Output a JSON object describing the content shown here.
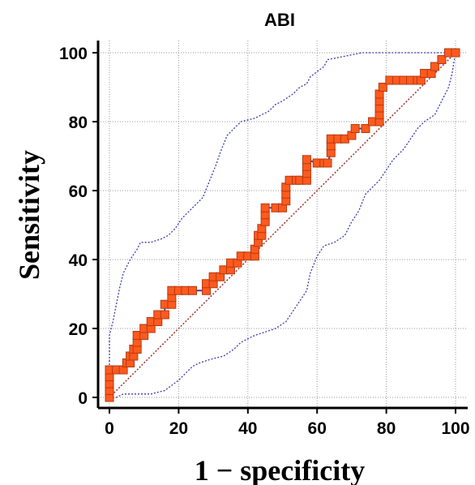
{
  "chart_data": {
    "type": "line",
    "title": "ABI",
    "xlabel": "1 − specificity",
    "ylabel": "Sensitivity",
    "xlim": [
      0,
      100
    ],
    "ylim": [
      0,
      100
    ],
    "x_ticks": [
      0,
      20,
      40,
      60,
      80,
      100
    ],
    "y_ticks": [
      0,
      20,
      40,
      60,
      80,
      100
    ],
    "grid": true,
    "colors": {
      "roc_line": "#3b3bb0",
      "roc_marker_fill": "#ff5a1e",
      "roc_marker_stroke": "#b33a10",
      "ci_band": "#3b3bb0",
      "diagonal": "#a0302a",
      "grid": "#999999"
    },
    "series": [
      {
        "role": "roc",
        "points": [
          [
            0,
            0
          ],
          [
            0,
            2
          ],
          [
            0,
            4
          ],
          [
            0,
            6
          ],
          [
            0,
            8
          ],
          [
            2,
            8
          ],
          [
            4,
            8
          ],
          [
            5,
            10
          ],
          [
            6,
            10
          ],
          [
            6,
            12
          ],
          [
            7,
            12
          ],
          [
            7,
            14
          ],
          [
            8,
            14
          ],
          [
            8,
            16
          ],
          [
            8,
            18
          ],
          [
            10,
            18
          ],
          [
            10,
            20
          ],
          [
            12,
            20
          ],
          [
            12,
            22
          ],
          [
            14,
            22
          ],
          [
            14,
            24
          ],
          [
            16,
            24
          ],
          [
            16,
            27
          ],
          [
            18,
            27
          ],
          [
            18,
            29
          ],
          [
            18,
            31
          ],
          [
            20,
            31
          ],
          [
            22,
            31
          ],
          [
            24,
            31
          ],
          [
            28,
            31
          ],
          [
            28,
            33
          ],
          [
            30,
            33
          ],
          [
            30,
            35
          ],
          [
            32,
            35
          ],
          [
            33,
            37
          ],
          [
            35,
            37
          ],
          [
            35,
            39
          ],
          [
            37,
            39
          ],
          [
            38,
            41
          ],
          [
            40,
            41
          ],
          [
            42,
            41
          ],
          [
            42,
            43
          ],
          [
            43,
            45
          ],
          [
            43,
            47
          ],
          [
            44,
            47
          ],
          [
            44,
            49
          ],
          [
            45,
            51
          ],
          [
            45,
            53
          ],
          [
            45,
            55
          ],
          [
            48,
            55
          ],
          [
            50,
            55
          ],
          [
            51,
            57
          ],
          [
            51,
            59
          ],
          [
            51,
            61
          ],
          [
            52,
            63
          ],
          [
            54,
            63
          ],
          [
            55,
            63
          ],
          [
            57,
            63
          ],
          [
            57,
            65
          ],
          [
            57,
            67
          ],
          [
            57,
            69
          ],
          [
            60,
            68
          ],
          [
            62,
            68
          ],
          [
            63,
            68
          ],
          [
            64,
            71
          ],
          [
            64,
            73
          ],
          [
            64,
            75
          ],
          [
            66,
            75
          ],
          [
            68,
            75
          ],
          [
            70,
            76
          ],
          [
            71,
            78
          ],
          [
            74,
            78
          ],
          [
            76,
            80
          ],
          [
            78,
            80
          ],
          [
            78,
            82
          ],
          [
            78,
            84
          ],
          [
            78,
            86
          ],
          [
            78,
            88
          ],
          [
            79,
            90
          ],
          [
            81,
            92
          ],
          [
            83,
            92
          ],
          [
            85,
            92
          ],
          [
            87,
            92
          ],
          [
            89,
            92
          ],
          [
            90,
            92
          ],
          [
            91,
            94
          ],
          [
            93,
            94
          ],
          [
            94,
            96
          ],
          [
            96,
            98
          ],
          [
            98,
            100
          ],
          [
            100,
            100
          ]
        ]
      },
      {
        "role": "ci_upper",
        "points": [
          [
            0,
            0
          ],
          [
            0,
            10
          ],
          [
            0,
            18
          ],
          [
            1,
            22
          ],
          [
            2,
            27
          ],
          [
            3,
            32
          ],
          [
            4,
            36
          ],
          [
            6,
            40
          ],
          [
            8,
            43
          ],
          [
            9,
            45
          ],
          [
            12,
            45
          ],
          [
            15,
            46
          ],
          [
            17,
            47
          ],
          [
            19,
            49
          ],
          [
            21,
            52
          ],
          [
            23,
            54
          ],
          [
            25,
            56
          ],
          [
            27,
            58
          ],
          [
            29,
            63
          ],
          [
            31,
            68
          ],
          [
            32,
            71
          ],
          [
            34,
            76
          ],
          [
            36,
            78
          ],
          [
            38,
            80
          ],
          [
            42,
            81
          ],
          [
            46,
            83
          ],
          [
            48,
            85
          ],
          [
            50,
            86
          ],
          [
            53,
            88
          ],
          [
            55,
            90
          ],
          [
            57,
            91
          ],
          [
            58,
            93
          ],
          [
            62,
            96
          ],
          [
            63,
            98
          ],
          [
            68,
            99
          ],
          [
            73,
            100
          ],
          [
            85,
            100
          ],
          [
            100,
            100
          ]
        ]
      },
      {
        "role": "ci_lower",
        "points": [
          [
            0,
            0
          ],
          [
            2,
            0
          ],
          [
            4,
            1
          ],
          [
            8,
            1
          ],
          [
            12,
            1
          ],
          [
            16,
            2
          ],
          [
            20,
            5
          ],
          [
            22,
            7
          ],
          [
            24,
            9
          ],
          [
            26,
            10
          ],
          [
            29,
            11
          ],
          [
            33,
            12
          ],
          [
            36,
            14
          ],
          [
            38,
            16
          ],
          [
            42,
            18
          ],
          [
            45,
            19
          ],
          [
            48,
            20
          ],
          [
            51,
            22
          ],
          [
            53,
            25
          ],
          [
            55,
            28
          ],
          [
            57,
            31
          ],
          [
            58,
            36
          ],
          [
            60,
            41
          ],
          [
            62,
            44
          ],
          [
            65,
            45
          ],
          [
            68,
            47
          ],
          [
            70,
            51
          ],
          [
            72,
            54
          ],
          [
            74,
            59
          ],
          [
            76,
            61
          ],
          [
            78,
            63
          ],
          [
            80,
            66
          ],
          [
            82,
            69
          ],
          [
            85,
            72
          ],
          [
            87,
            75
          ],
          [
            89,
            78
          ],
          [
            91,
            80
          ],
          [
            94,
            82
          ],
          [
            96,
            86
          ],
          [
            98,
            90
          ],
          [
            99,
            94
          ],
          [
            100,
            100
          ]
        ]
      },
      {
        "role": "diagonal",
        "points": [
          [
            0,
            0
          ],
          [
            100,
            100
          ]
        ]
      }
    ]
  }
}
